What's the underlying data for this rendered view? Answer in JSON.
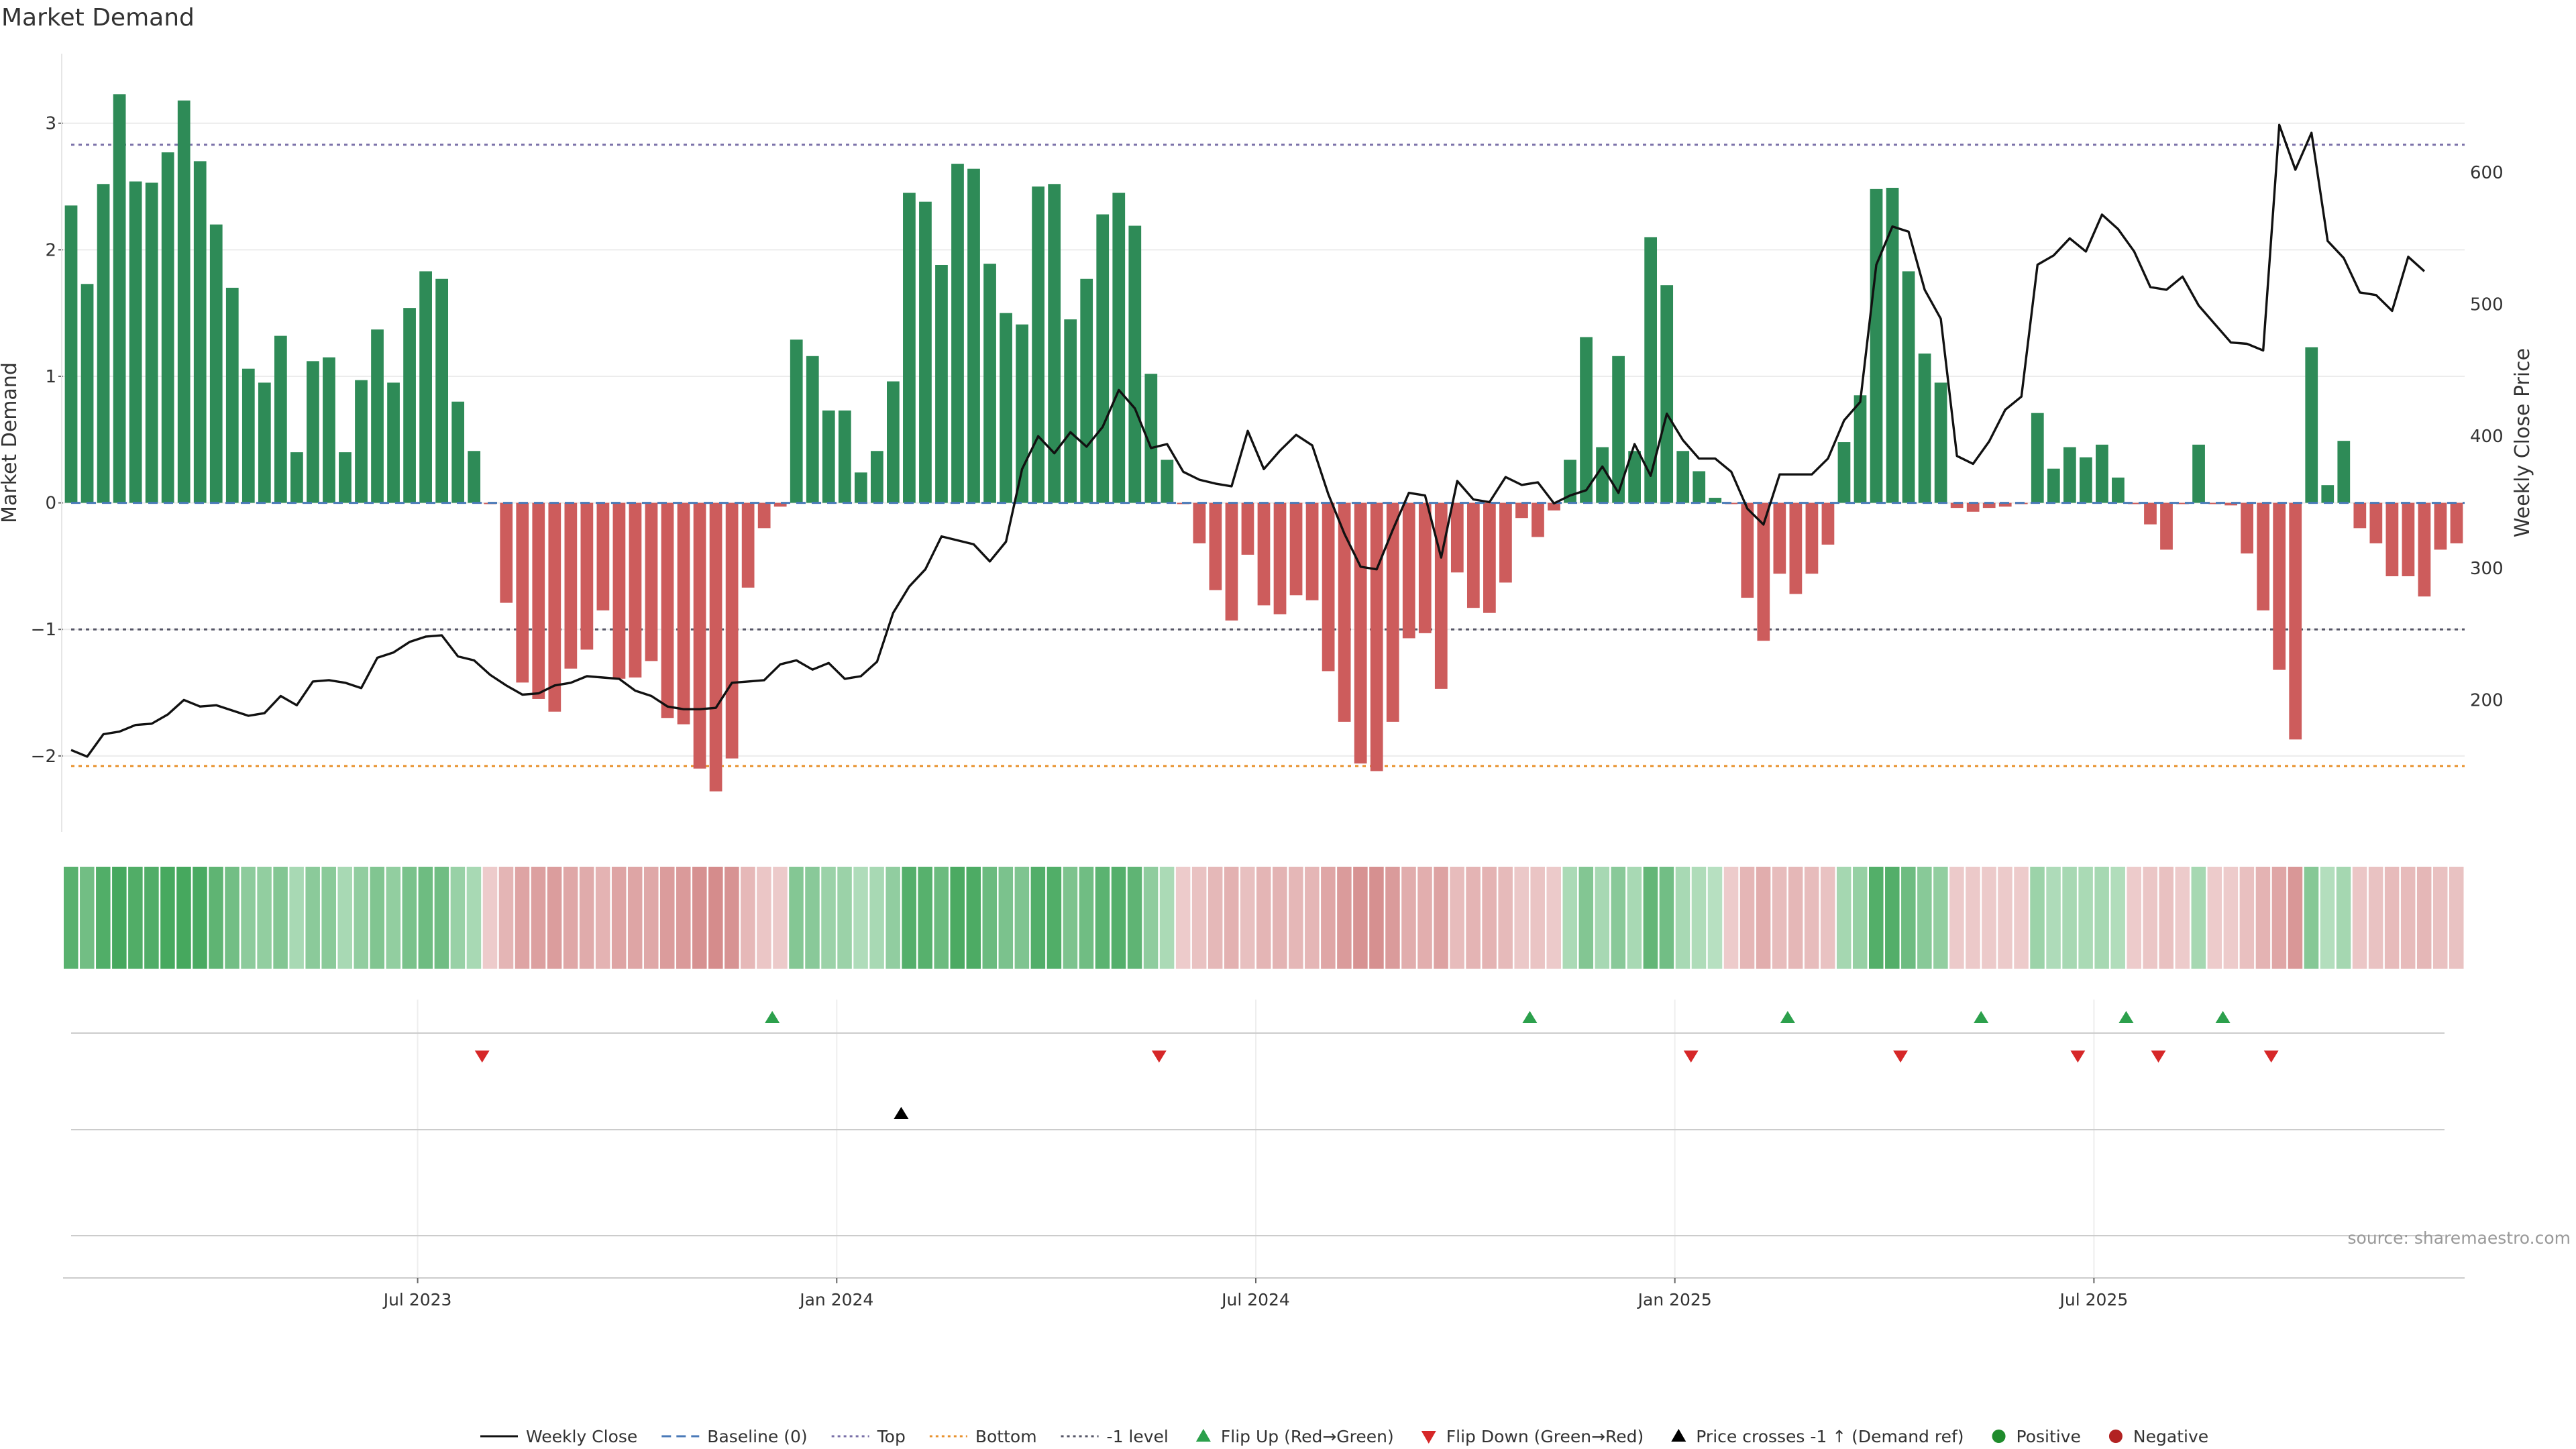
{
  "chart_data": {
    "type": "bar",
    "title": "Market Demand",
    "ylabel": "Market Demand",
    "y2label": "Weekly Close Price",
    "ylim": [
      -2.6,
      3.55
    ],
    "y2lim": [
      100,
      690
    ],
    "yticks": [
      -2,
      -1,
      0,
      1,
      2,
      3
    ],
    "y2ticks": [
      200,
      300,
      400,
      500,
      600
    ],
    "ytick_labels": [
      "−2",
      "−1",
      "0",
      "1",
      "2",
      "3"
    ],
    "y2tick_labels": [
      "200",
      "300",
      "400",
      "500",
      "600"
    ],
    "levels": {
      "top": 2.83,
      "bottom": -2.08,
      "minus_one": -1,
      "baseline": 0
    },
    "x_tick_labels": [
      {
        "label": "Jul 2023",
        "week": 22
      },
      {
        "label": "Jan 2024",
        "week": 48
      },
      {
        "label": "Jul 2024",
        "week": 74
      },
      {
        "label": "Jan 2025",
        "week": 100
      },
      {
        "label": "Jul 2025",
        "week": 126
      }
    ],
    "demand_series": {
      "name": "Market Demand (weekly)",
      "values": [
        2.35,
        1.73,
        2.52,
        3.23,
        2.54,
        2.53,
        2.77,
        3.18,
        2.7,
        2.2,
        1.7,
        1.06,
        0.95,
        1.32,
        0.4,
        1.12,
        1.15,
        0.4,
        0.97,
        1.37,
        0.95,
        1.54,
        1.83,
        1.77,
        0.8,
        0.41,
        -0.01,
        -0.79,
        -1.42,
        -1.55,
        -1.65,
        -1.31,
        -1.16,
        -0.85,
        -1.39,
        -1.38,
        -1.25,
        -1.7,
        -1.75,
        -2.1,
        -2.28,
        -2.02,
        -0.67,
        -0.2,
        -0.03,
        1.29,
        1.16,
        0.73,
        0.73,
        0.24,
        0.41,
        0.96,
        2.45,
        2.38,
        1.88,
        2.68,
        2.64,
        1.89,
        1.5,
        1.41,
        2.5,
        2.52,
        1.45,
        1.77,
        2.28,
        2.45,
        2.19,
        1.02,
        0.34,
        -0.01,
        -0.32,
        -0.69,
        -0.93,
        -0.41,
        -0.81,
        -0.88,
        -0.73,
        -0.77,
        -1.33,
        -1.73,
        -2.06,
        -2.12,
        -1.73,
        -1.07,
        -1.03,
        -1.47,
        -0.55,
        -0.83,
        -0.87,
        -0.63,
        -0.12,
        -0.27,
        -0.06,
        0.34,
        1.31,
        0.44,
        1.16,
        0.41,
        2.1,
        1.72,
        0.41,
        0.25,
        0.04,
        -0.01,
        -0.75,
        -1.09,
        -0.56,
        -0.72,
        -0.56,
        -0.33,
        0.48,
        0.85,
        2.48,
        2.49,
        1.83,
        1.18,
        0.95,
        -0.04,
        -0.07,
        -0.04,
        -0.03,
        -0.01,
        0.71,
        0.27,
        0.44,
        0.36,
        0.46,
        0.2,
        -0.01,
        -0.17,
        -0.37,
        -0.01,
        0.46,
        -0.01,
        -0.02,
        -0.4,
        -0.85,
        -1.32,
        -1.87,
        1.23,
        0.14,
        0.49,
        -0.2,
        -0.32,
        -0.58,
        -0.58,
        -0.74,
        -0.37,
        -0.32
      ]
    },
    "price_series": {
      "name": "Weekly Close",
      "values": [
        162,
        157,
        174,
        176,
        181,
        182,
        189,
        200,
        195,
        196,
        192,
        188,
        190,
        203,
        196,
        214,
        215,
        213,
        209,
        232,
        236,
        244,
        248,
        249,
        233,
        230,
        219,
        211,
        204,
        205,
        211,
        213,
        218,
        217,
        216,
        207,
        203,
        195,
        193,
        193,
        194,
        213,
        214,
        215,
        227,
        230,
        223,
        228,
        216,
        218,
        229,
        266,
        286,
        299,
        324,
        321,
        318,
        305,
        320,
        375,
        400,
        387,
        403,
        392,
        407,
        435,
        421,
        391,
        394,
        373,
        367,
        364,
        362,
        404,
        375,
        389,
        401,
        393,
        356,
        326,
        301,
        299,
        329,
        357,
        355,
        308,
        366,
        352,
        350,
        369,
        363,
        365,
        349,
        355,
        359,
        377,
        357,
        394,
        370,
        417,
        397,
        383,
        383,
        373,
        345,
        333,
        371,
        371,
        371,
        383,
        412,
        426,
        530,
        559,
        555,
        511,
        489,
        385,
        379,
        396,
        420,
        430,
        530,
        537,
        550,
        540,
        568,
        557,
        540,
        513,
        511,
        521,
        499,
        485,
        471,
        470,
        465,
        636,
        602,
        630,
        548,
        535,
        509,
        507,
        495,
        536,
        525
      ]
    },
    "heat_strip": {
      "description": "Weekly color intensity strip (green = positive, red = negative)"
    },
    "event_rows": {
      "flip_up_weeks": [
        44,
        91,
        107,
        119,
        128,
        134
      ],
      "flip_down_weeks": [
        26,
        68,
        101,
        114,
        125,
        130,
        137
      ],
      "price_cross_weeks": [
        52
      ]
    },
    "source_text": "source: sharemaestro.com",
    "legend": [
      {
        "key": "weekly-close",
        "label": "Weekly Close",
        "color": "#111111",
        "style": "line"
      },
      {
        "key": "baseline",
        "label": "Baseline (0)",
        "color": "#4a7ab8",
        "style": "dash"
      },
      {
        "key": "top",
        "label": "Top",
        "color": "#7a70a8",
        "style": "dot"
      },
      {
        "key": "bottom",
        "label": "Bottom",
        "color": "#e8922e",
        "style": "dot"
      },
      {
        "key": "minus-one",
        "label": "-1 level",
        "color": "#555566",
        "style": "dot"
      },
      {
        "key": "flip-up",
        "label": "Flip Up (Red→Green)",
        "color": "#2ca04c",
        "style": "tri-up"
      },
      {
        "key": "flip-down",
        "label": "Flip Down (Green→Red)",
        "color": "#d62728",
        "style": "tri-down"
      },
      {
        "key": "price-cross",
        "label": "Price crosses -1 ↑ (Demand ref)",
        "color": "#000000",
        "style": "tri-up"
      },
      {
        "key": "positive",
        "label": "Positive",
        "color": "#1f8b2c",
        "style": "dot"
      },
      {
        "key": "negative",
        "label": "Negative",
        "color": "#b22222",
        "style": "dot"
      }
    ],
    "colors": {
      "positive_bar": "#2e8b57",
      "negative_bar": "#cd5c5c",
      "price_line": "#111111"
    }
  }
}
